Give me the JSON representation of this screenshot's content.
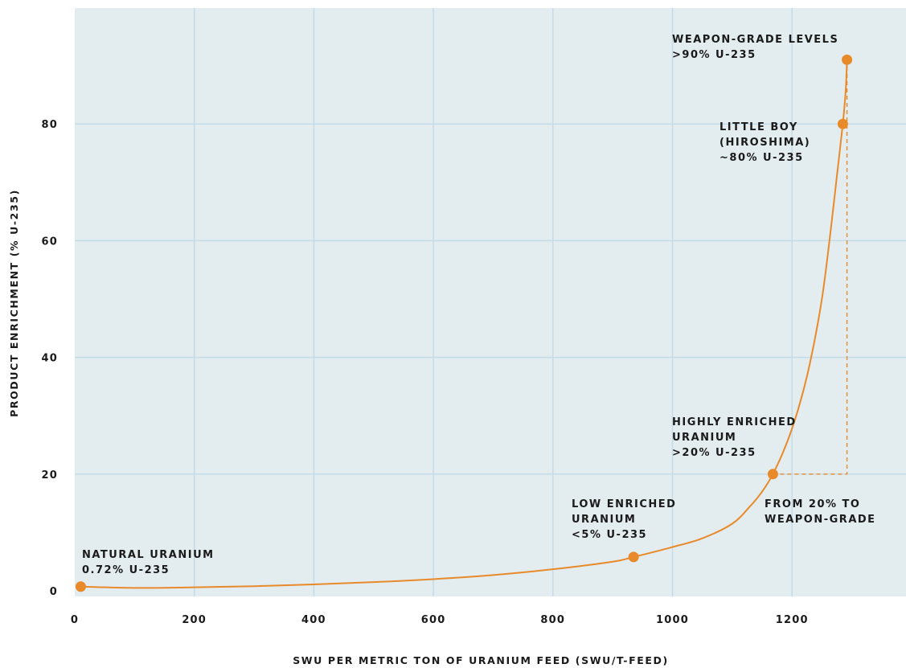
{
  "chart_data": {
    "type": "line",
    "title": "",
    "xlabel": "SWU PER METRIC TON OF URANIUM FEED (SWU/T-FEED)",
    "ylabel": "PRODUCT ENRICHMENT (% U-235)",
    "xlim": [
      0,
      1400
    ],
    "ylim": [
      0,
      100
    ],
    "x_ticks": [
      0,
      200,
      400,
      600,
      800,
      1000,
      1200
    ],
    "x_tick_labels": [
      "0",
      "200",
      "400",
      "600",
      "800",
      "1000",
      "1200"
    ],
    "y_ticks": [
      0,
      20,
      40,
      60,
      80
    ],
    "y_tick_labels": [
      "0",
      "20",
      "40",
      "60",
      "80"
    ],
    "grid": true,
    "colors": {
      "plot_background": "#e3ecef",
      "grid": "#c4dce8",
      "curve": "#e88a2a",
      "marker": "#e88a2a",
      "text": "#1a1a1a"
    },
    "series": [
      {
        "x": [
          10,
          100,
          200,
          300,
          400,
          500,
          600,
          700,
          800,
          900,
          935,
          1000,
          1050,
          1100,
          1130,
          1150,
          1168,
          1190,
          1210,
          1230,
          1250,
          1265,
          1275,
          1285,
          1290,
          1292
        ],
        "values": [
          0.72,
          0.5,
          0.6,
          0.8,
          1.1,
          1.5,
          2.0,
          2.7,
          3.7,
          5.0,
          5.8,
          7.5,
          9.0,
          11.5,
          14.5,
          17.0,
          20.0,
          25.0,
          31.0,
          39.0,
          50.0,
          62.0,
          71.0,
          80.0,
          86.0,
          91.0
        ]
      }
    ],
    "points": [
      {
        "x": 10,
        "y": 0.72,
        "lines": [
          "NATURAL URANIUM",
          "0.72% U-235"
        ]
      },
      {
        "x": 935,
        "y": 5.8,
        "lines": [
          "LOW ENRICHED",
          "URANIUM",
          "<5% U-235"
        ]
      },
      {
        "x": 1168,
        "y": 20,
        "lines": [
          "HIGHLY ENRICHED",
          "URANIUM",
          ">20% U-235"
        ]
      },
      {
        "x": 1285,
        "y": 80,
        "lines": [
          "LITTLE BOY",
          "(HIROSHIMA)",
          "~80% U-235"
        ]
      },
      {
        "x": 1292,
        "y": 91,
        "lines": [
          "WEAPON-GRADE LEVELS",
          ">90% U-235"
        ]
      }
    ],
    "dashed_guide": {
      "from": [
        1168,
        20
      ],
      "corner": [
        1292,
        20
      ],
      "to": [
        1292,
        91
      ]
    },
    "annotations": [
      {
        "lines": [
          "FROM 20% TO",
          "WEAPON-GRADE"
        ]
      }
    ]
  }
}
